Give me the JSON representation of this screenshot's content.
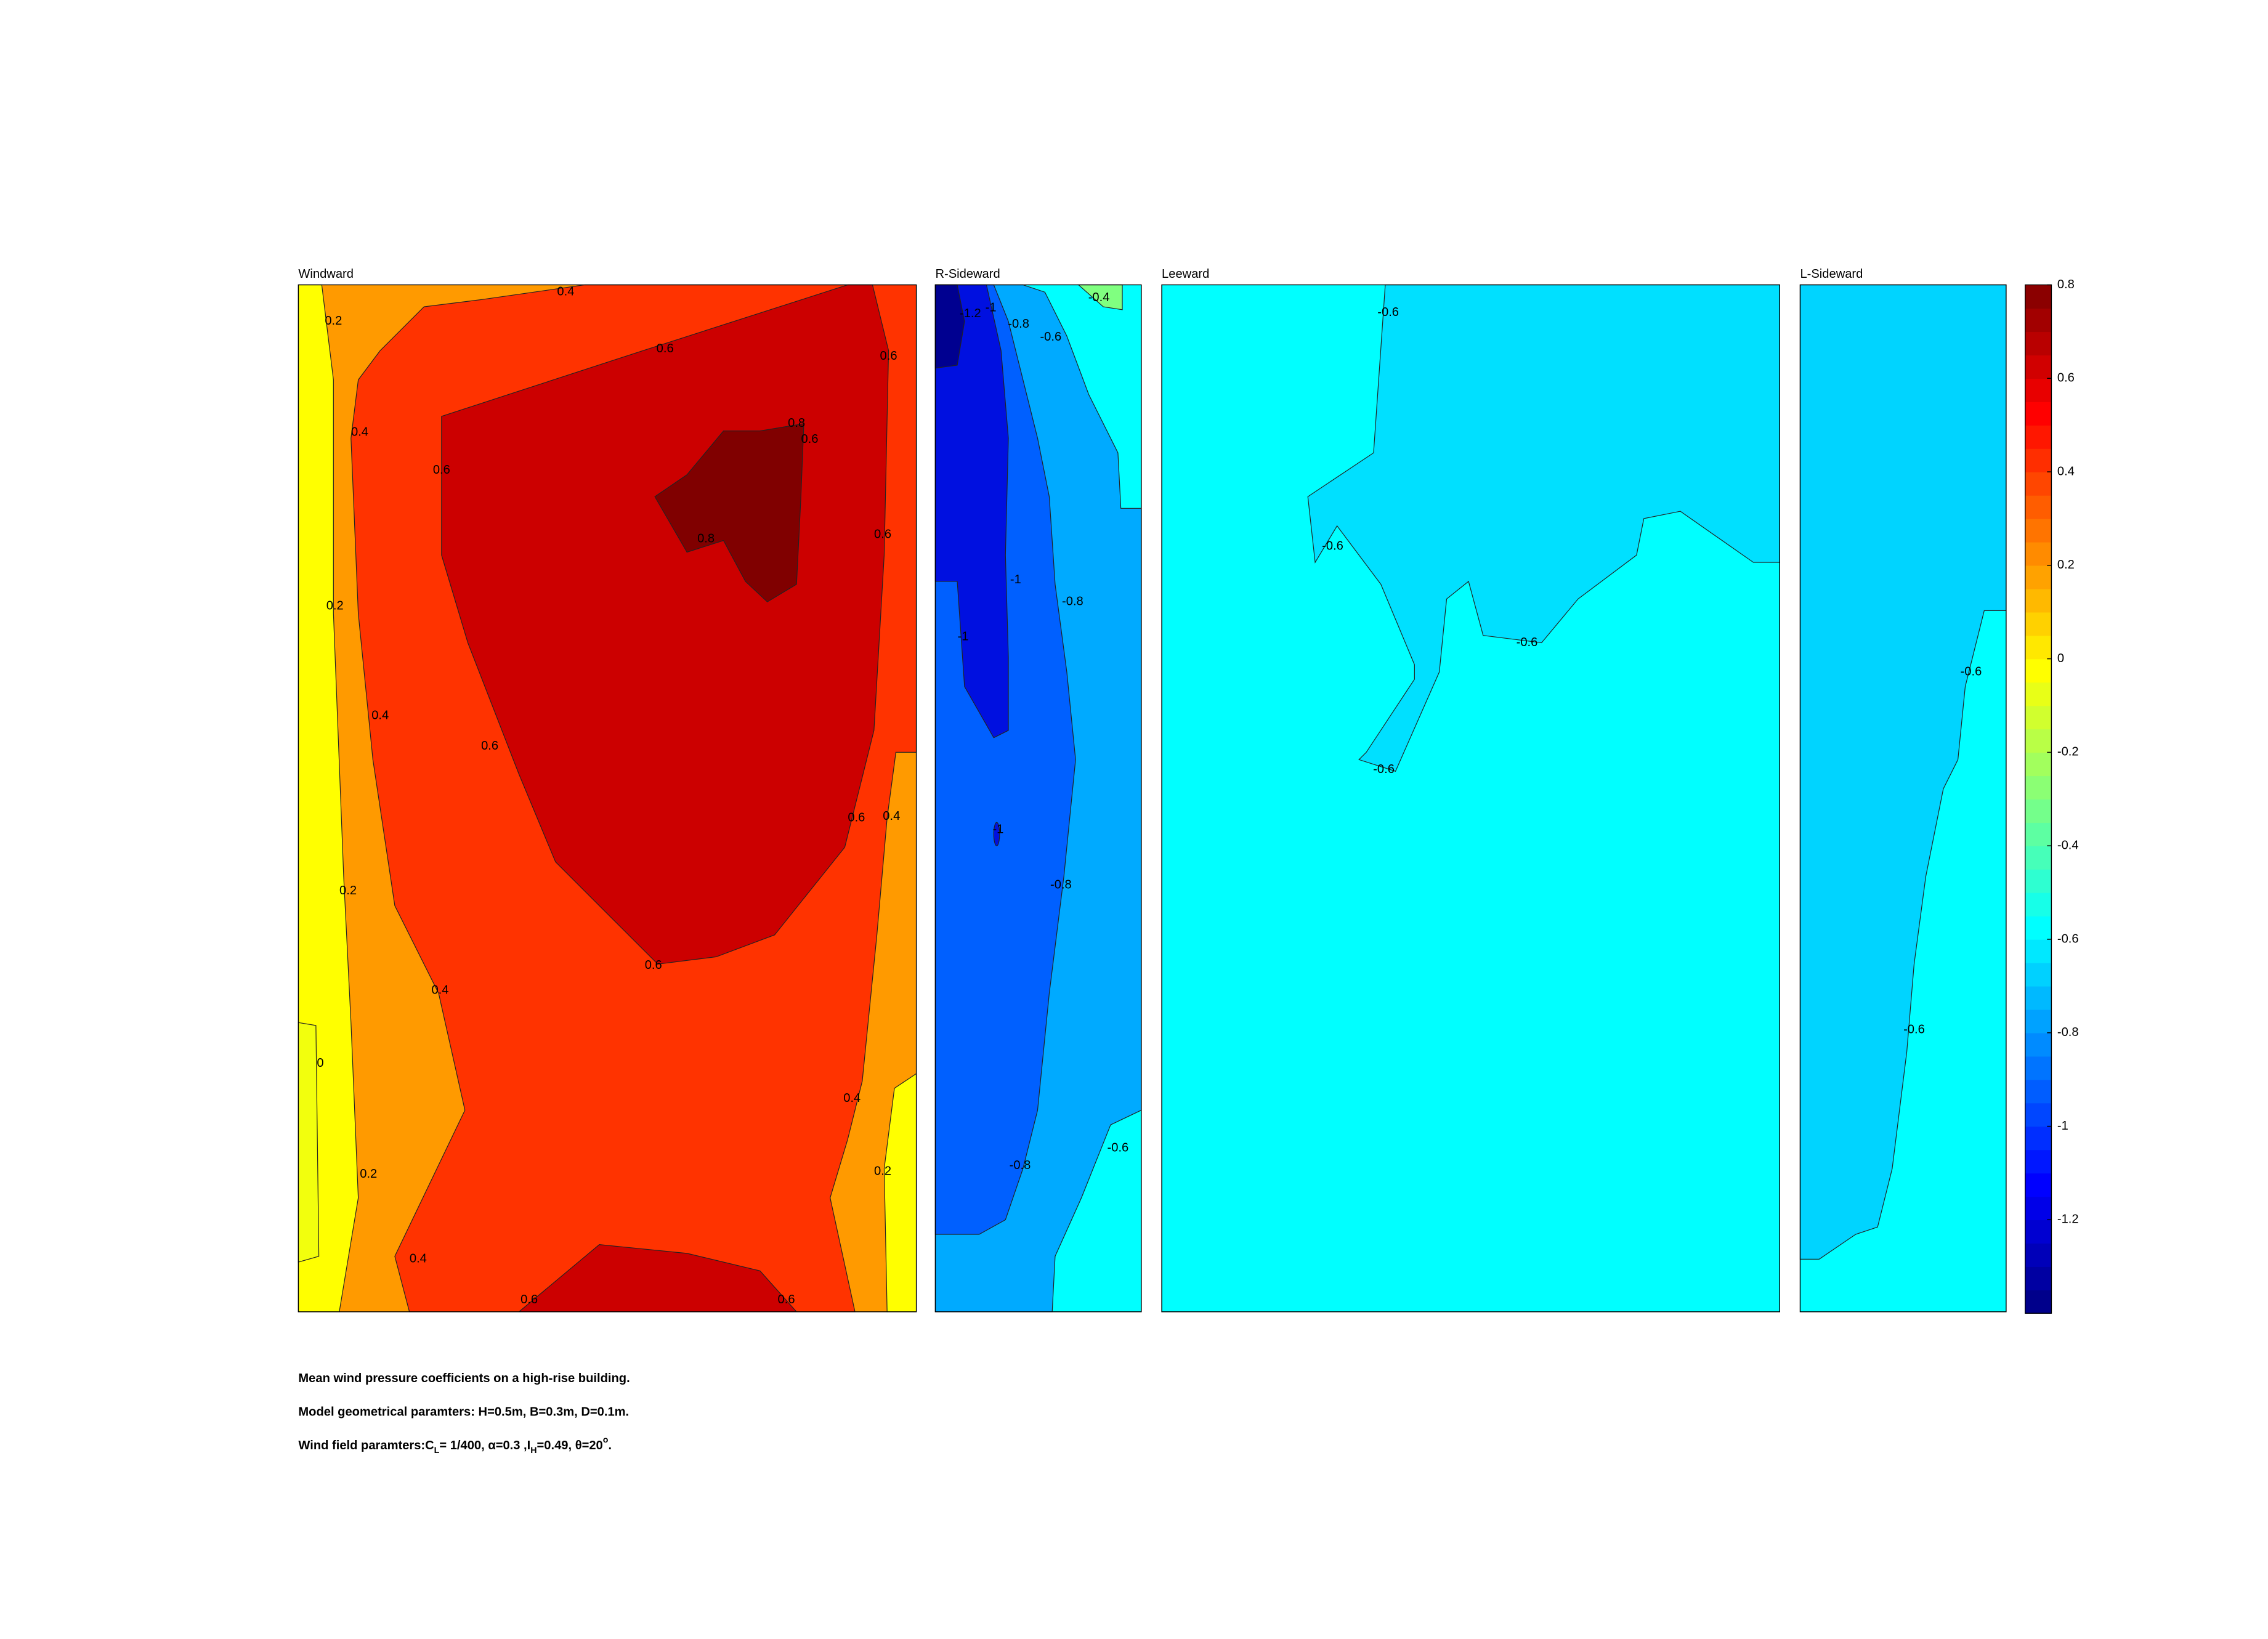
{
  "chart_data": {
    "type": "contour",
    "panels": [
      {
        "title": "Windward",
        "contour_labels": [
          0.4,
          0.2,
          0.6,
          0.6,
          0.4,
          0.6,
          0.8,
          0.6,
          0.8,
          0.6,
          0.2,
          0.4,
          0.6,
          0.6,
          0.4,
          0.2,
          0.6,
          0.4,
          0,
          0.4,
          0.2,
          0.2,
          0.4,
          0.6,
          0.6
        ]
      },
      {
        "title": "R-Sideward",
        "contour_labels": [
          -0.4,
          -1.2,
          -1,
          -0.8,
          -0.6,
          -1,
          -0.8,
          -1,
          -1,
          -0.8,
          -0.6,
          -0.8
        ]
      },
      {
        "title": "Leeward",
        "contour_labels": [
          -0.6,
          -0.6,
          -0.6,
          -0.6
        ]
      },
      {
        "title": "L-Sideward",
        "contour_labels": [
          -0.6,
          -0.6
        ]
      }
    ],
    "colorbar": {
      "lim": [
        -1.4,
        0.8
      ],
      "ticks": [
        0.8,
        0.6,
        0.4,
        0.2,
        0,
        -0.2,
        -0.4,
        -0.6,
        -0.8,
        -1,
        -1.2
      ]
    },
    "caption": [
      "Mean wind pressure coefficients on a high-rise building.",
      "Model geometrical paramters: H=0.5m, B=0.3m, D=0.1m.",
      [
        "Wind field paramters:C",
        "L",
        "= 1/400, α=0.3 ,I",
        "H",
        "=0.49, θ=20",
        "o",
        "."
      ]
    ]
  }
}
